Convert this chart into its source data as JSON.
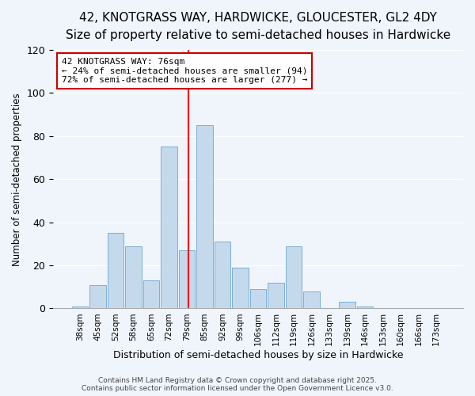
{
  "title": "42, KNOTGRASS WAY, HARDWICKE, GLOUCESTER, GL2 4DY",
  "subtitle": "Size of property relative to semi-detached houses in Hardwicke",
  "xlabel": "Distribution of semi-detached houses by size in Hardwicke",
  "ylabel": "Number of semi-detached properties",
  "bin_labels": [
    "38sqm",
    "45sqm",
    "52sqm",
    "58sqm",
    "65sqm",
    "72sqm",
    "79sqm",
    "85sqm",
    "92sqm",
    "99sqm",
    "106sqm",
    "112sqm",
    "119sqm",
    "126sqm",
    "133sqm",
    "139sqm",
    "146sqm",
    "153sqm",
    "160sqm",
    "166sqm",
    "173sqm"
  ],
  "bar_heights": [
    1,
    11,
    35,
    29,
    13,
    75,
    27,
    85,
    31,
    19,
    9,
    12,
    29,
    8,
    0,
    3,
    1,
    0,
    0,
    0,
    0
  ],
  "bar_color": "#c5d9ed",
  "bar_edge_color": "#7aafd4",
  "red_line_x": 6.07,
  "ylim": [
    0,
    120
  ],
  "yticks": [
    0,
    20,
    40,
    60,
    80,
    100,
    120
  ],
  "annotation_title": "42 KNOTGRASS WAY: 76sqm",
  "annotation_line1": "← 24% of semi-detached houses are smaller (94)",
  "annotation_line2": "72% of semi-detached houses are larger (277) →",
  "footer1": "Contains HM Land Registry data © Crown copyright and database right 2025.",
  "footer2": "Contains public sector information licensed under the Open Government Licence v3.0.",
  "bg_color": "#f0f5fb",
  "title_fontsize": 11,
  "subtitle_fontsize": 9.5,
  "annotation_fontsize": 8,
  "xlabel_fontsize": 9,
  "ylabel_fontsize": 8.5,
  "annotation_box_color": "#ffffff",
  "annotation_box_edge": "#cc0000",
  "grid_color": "#ffffff"
}
